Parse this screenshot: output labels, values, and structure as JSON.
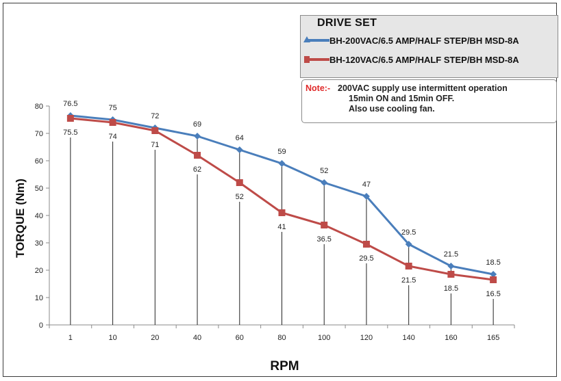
{
  "chart_data": {
    "type": "line",
    "xlabel": "RPM",
    "ylabel": "TORQUE (Nm)",
    "categories": [
      "1",
      "10",
      "20",
      "40",
      "60",
      "80",
      "100",
      "120",
      "140",
      "160",
      "165"
    ],
    "ylim": [
      0,
      80
    ],
    "yticks": [
      0,
      10,
      20,
      30,
      40,
      50,
      60,
      70,
      80
    ],
    "grid": false,
    "legend_placement": "top-right",
    "series": [
      {
        "name": "BH-200VAC/6.5 AMP/HALF STEP/BH MSD-8A",
        "color": "#4a7ebb",
        "marker": "diamond",
        "values": [
          76.5,
          75,
          72,
          69,
          64,
          59,
          52,
          47,
          29.5,
          21.5,
          18.5
        ],
        "labels": [
          "76.5",
          "75",
          "72",
          "69",
          "64",
          "59",
          "52",
          "47",
          "29.5",
          "21.5",
          "18.5"
        ]
      },
      {
        "name": "BH-120VAC/6.5 AMP/HALF STEP/BH MSD-8A",
        "color": "#be4b48",
        "marker": "square",
        "values": [
          75.5,
          74,
          71,
          62,
          52,
          41,
          36.5,
          29.5,
          21.5,
          18.5,
          16.5
        ],
        "labels": [
          "75.5",
          "74",
          "71",
          "62",
          "52",
          "41",
          "36.5",
          "29.5",
          "21.5",
          "18.5",
          "16.5"
        ]
      }
    ]
  },
  "legend": {
    "title": "DRIVE SET"
  },
  "note": {
    "label": "Note:-",
    "line1": "200VAC supply use intermittent operation",
    "line2": "15min ON and 15min OFF.",
    "line3": "Also use cooling fan."
  }
}
